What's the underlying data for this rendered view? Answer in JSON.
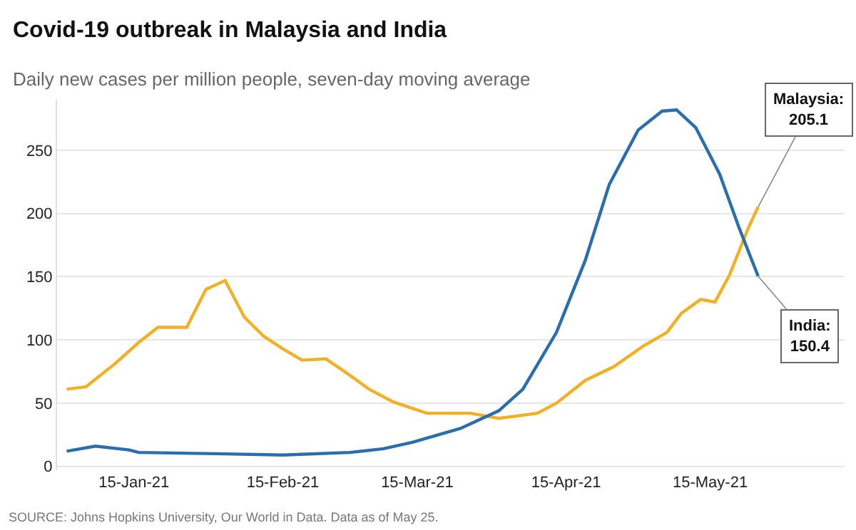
{
  "chart_data": {
    "type": "line",
    "title": "Covid-19 outbreak in Malaysia and India",
    "subtitle": "Daily new cases per million people, seven-day moving average",
    "x": [
      "2021-01-01",
      "2021-01-05",
      "2021-01-11",
      "2021-01-16",
      "2021-01-20",
      "2021-01-26",
      "2021-01-30",
      "2021-02-03",
      "2021-02-07",
      "2021-02-11",
      "2021-02-15",
      "2021-02-19",
      "2021-02-24",
      "2021-03-01",
      "2021-03-05",
      "2021-03-10",
      "2021-03-17",
      "2021-03-20",
      "2021-03-26",
      "2021-04-01",
      "2021-04-09",
      "2021-04-13",
      "2021-04-19",
      "2021-04-25",
      "2021-05-01",
      "2021-05-06",
      "2021-05-09",
      "2021-05-13",
      "2021-05-16",
      "2021-05-19",
      "2021-05-23",
      "2021-05-25"
    ],
    "series": [
      {
        "color": "#f2b124",
        "values": [
          61,
          63,
          81,
          98,
          110,
          110,
          140,
          147,
          118,
          103,
          93,
          84,
          85,
          72,
          61,
          51,
          42,
          42,
          42,
          38,
          42,
          50,
          68,
          79,
          95,
          106,
          121,
          132,
          130,
          151,
          189,
          205.1
        ]
      },
      {
        "color": "#2a6eae",
        "x": [
          "2021-01-01",
          "2021-01-07",
          "2021-01-14",
          "2021-01-16",
          "2021-02-01",
          "2021-02-15",
          "2021-03-01",
          "2021-03-08",
          "2021-03-14",
          "2021-03-24",
          "2021-04-01",
          "2021-04-06",
          "2021-04-13",
          "2021-04-19",
          "2021-04-24",
          "2021-04-30",
          "2021-05-05",
          "2021-05-08",
          "2021-05-12",
          "2021-05-17",
          "2021-05-21",
          "2021-05-25"
        ],
        "values": [
          12,
          16,
          13,
          11,
          10,
          9,
          11,
          14,
          19,
          30,
          44,
          61,
          106,
          163,
          223,
          266,
          281,
          282,
          268,
          231,
          189,
          150.4
        ]
      }
    ],
    "xlim": [
      "2020-12-30",
      "2021-06-12"
    ],
    "xticks": [
      {
        "value": "2021-01-15",
        "label": "15-Jan-21"
      },
      {
        "value": "2021-02-15",
        "label": "15-Feb-21"
      },
      {
        "value": "2021-03-15",
        "label": "15-Mar-21"
      },
      {
        "value": "2021-04-15",
        "label": "15-Apr-21"
      },
      {
        "value": "2021-05-15",
        "label": "15-May-21"
      }
    ],
    "ylim": [
      -3,
      290
    ],
    "yticks": [
      0,
      50,
      100,
      150,
      200,
      250
    ],
    "grid": "y",
    "legend": false,
    "annotations": [
      {
        "text": "Malaysia:\n205.1",
        "x": "2021-05-25",
        "y": 205.1
      },
      {
        "text": "India:\n150.4",
        "x": "2021-05-25",
        "y": 150.4
      },
      "SOURCE: Johns Hopkins University, Our World in Data. Data as of May 25."
    ]
  }
}
